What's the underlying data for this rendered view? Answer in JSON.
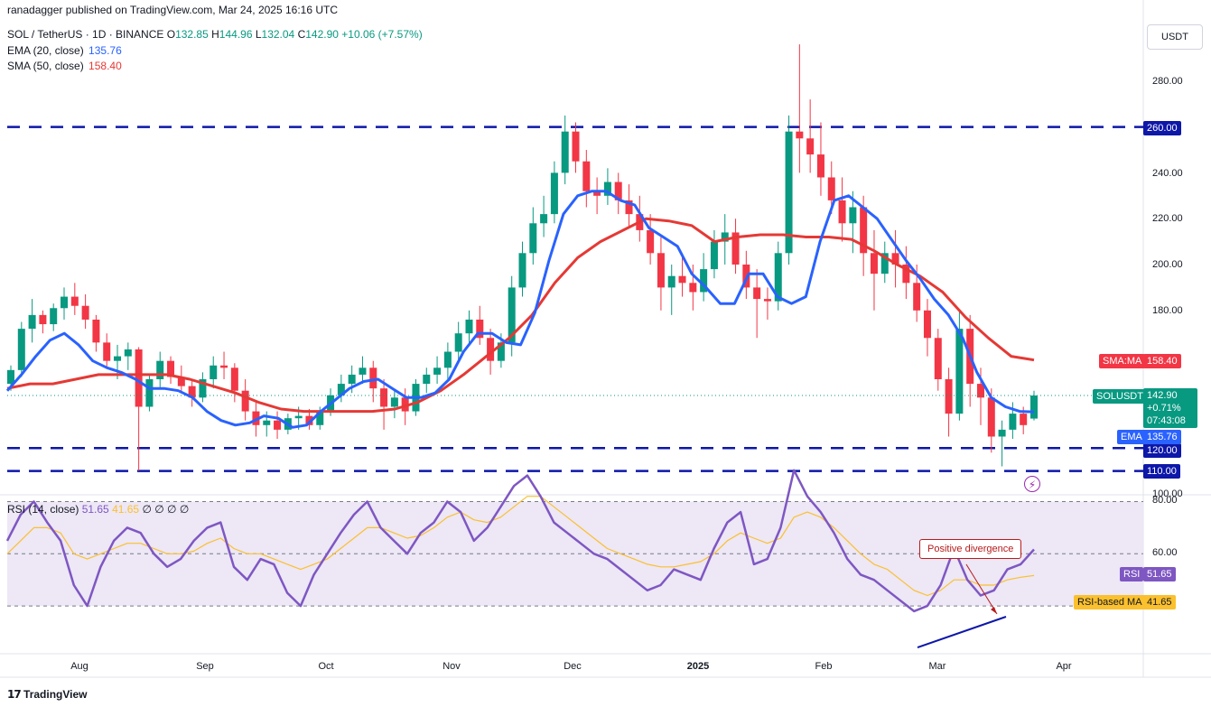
{
  "header": {
    "attribution": "ranadagger published on TradingView.com, Mar 24, 2025 16:16 UTC",
    "symbol": "SOL / TetherUS · 1D · BINANCE",
    "ohlc": {
      "o_label": "O",
      "o": "132.85",
      "h_label": "H",
      "h": "144.96",
      "l_label": "L",
      "l": "132.04",
      "c_label": "C",
      "c": "142.90",
      "change": "+10.06 (+7.57%)"
    },
    "ema_label": "EMA (20, close)",
    "ema_value": "135.76",
    "sma_label": "SMA (50, close)",
    "sma_value": "158.40",
    "currency": "USDT"
  },
  "price_axis": {
    "ticks": [
      "280.00",
      "260.00",
      "240.00",
      "220.00",
      "200.00",
      "180.00",
      "120.00",
      "110.00",
      "100.00"
    ]
  },
  "time_axis": {
    "ticks": [
      "Aug",
      "Sep",
      "Oct",
      "Nov",
      "Dec",
      "2025",
      "Feb",
      "Mar",
      "Apr"
    ]
  },
  "labels": {
    "level_260": "260.00",
    "level_120": "120.00",
    "level_110": "110.00",
    "sma_tag": "SMA:MA",
    "sma_value": "158.40",
    "symbol_tag": "SOLUSDT",
    "last_price": "142.90",
    "last_change": "+0.71%",
    "countdown": "07:43:08",
    "ema_tag": "EMA",
    "ema_value": "135.76"
  },
  "rsi": {
    "header_label": "RSI (14, close)",
    "header_value": "51.65",
    "header_ma": "41.65",
    "header_rest": "∅ ∅ ∅ ∅",
    "ticks": [
      "80.00",
      "60.00"
    ],
    "rsi_tag": "RSI",
    "rsi_value": "51.65",
    "ma_tag": "RSI-based MA",
    "ma_value": "41.65",
    "annotation": "Positive divergence"
  },
  "footer": {
    "brand": "TradingView"
  },
  "colors": {
    "up": "#089981",
    "down": "#f23645",
    "ema": "#2962ff",
    "sma": "#e53935",
    "level": "#0d17a8",
    "rsi": "#7e57c2",
    "rsi_ma": "#fbc02d",
    "rsi_band": "#ede7f6"
  },
  "chart_data": [
    {
      "type": "candlestick",
      "title": "SOL / TetherUS · 1D · BINANCE",
      "x_range": [
        "2025-07-15",
        "2025-04-10"
      ],
      "ylim": [
        100,
        296
      ],
      "currency": "USDT",
      "horizontal_levels": [
        260,
        120,
        110
      ],
      "last": {
        "open": 132.85,
        "high": 144.96,
        "low": 132.04,
        "close": 142.9,
        "change": 10.06,
        "change_pct": 7.57
      },
      "series": [
        {
          "name": "EMA (20, close)",
          "last": 135.76,
          "values": [
            145,
            152,
            160,
            167,
            170,
            165,
            158,
            155,
            153,
            150,
            146,
            146,
            145,
            142,
            136,
            132,
            130,
            131,
            134,
            133,
            129,
            130,
            136,
            141,
            146,
            149,
            150,
            146,
            142,
            142,
            144,
            150,
            162,
            170,
            170,
            166,
            165,
            179,
            202,
            222,
            230,
            232,
            232,
            228,
            226,
            216,
            212,
            208,
            196,
            190,
            183,
            183,
            196,
            196,
            186,
            183,
            186,
            210,
            228,
            230,
            225,
            220,
            211,
            202,
            194,
            185,
            178,
            168,
            153,
            142,
            138,
            136,
            135.76
          ]
        },
        {
          "name": "SMA (50, close)",
          "last": 158.4,
          "values": [
            146,
            148,
            148,
            150,
            152,
            152,
            152,
            152,
            150,
            147,
            144,
            140,
            137,
            136,
            136,
            136,
            136,
            137,
            140,
            145,
            152,
            160,
            168,
            178,
            192,
            203,
            210,
            215,
            220,
            219,
            217,
            210,
            212,
            213,
            213,
            212,
            212,
            211,
            206,
            200,
            195,
            188,
            177,
            168,
            160,
            158.4
          ]
        }
      ],
      "candles_ohlc": [
        [
          148,
          156,
          145,
          154
        ],
        [
          154,
          175,
          151,
          172
        ],
        [
          172,
          185,
          166,
          178
        ],
        [
          178,
          180,
          170,
          174
        ],
        [
          174,
          183,
          171,
          181
        ],
        [
          181,
          190,
          176,
          186
        ],
        [
          186,
          192,
          178,
          182
        ],
        [
          182,
          187,
          172,
          176
        ],
        [
          176,
          178,
          162,
          166
        ],
        [
          166,
          170,
          155,
          158
        ],
        [
          158,
          165,
          150,
          160
        ],
        [
          160,
          166,
          154,
          163
        ],
        [
          163,
          164,
          110,
          138
        ],
        [
          138,
          152,
          136,
          150
        ],
        [
          150,
          162,
          146,
          158
        ],
        [
          158,
          160,
          148,
          151
        ],
        [
          151,
          156,
          144,
          147
        ],
        [
          147,
          150,
          138,
          142
        ],
        [
          142,
          153,
          140,
          150
        ],
        [
          150,
          160,
          146,
          156
        ],
        [
          156,
          162,
          150,
          155
        ],
        [
          155,
          157,
          140,
          145
        ],
        [
          145,
          150,
          132,
          136
        ],
        [
          136,
          140,
          125,
          130
        ],
        [
          130,
          136,
          125,
          132
        ],
        [
          132,
          136,
          124,
          128
        ],
        [
          128,
          135,
          126,
          133
        ],
        [
          133,
          138,
          128,
          134
        ],
        [
          134,
          137,
          128,
          130
        ],
        [
          130,
          138,
          128,
          136
        ],
        [
          136,
          146,
          134,
          143
        ],
        [
          143,
          152,
          140,
          148
        ],
        [
          148,
          156,
          144,
          152
        ],
        [
          152,
          160,
          148,
          155
        ],
        [
          155,
          158,
          140,
          146
        ],
        [
          146,
          150,
          128,
          138
        ],
        [
          138,
          145,
          133,
          142
        ],
        [
          142,
          146,
          130,
          136
        ],
        [
          136,
          150,
          134,
          148
        ],
        [
          148,
          155,
          144,
          152
        ],
        [
          152,
          160,
          148,
          155
        ],
        [
          155,
          166,
          150,
          162
        ],
        [
          162,
          175,
          158,
          170
        ],
        [
          170,
          180,
          165,
          176
        ],
        [
          176,
          182,
          165,
          168
        ],
        [
          168,
          172,
          152,
          158
        ],
        [
          158,
          170,
          155,
          166
        ],
        [
          166,
          195,
          160,
          190
        ],
        [
          190,
          210,
          186,
          205
        ],
        [
          205,
          225,
          200,
          218
        ],
        [
          218,
          230,
          212,
          222
        ],
        [
          222,
          245,
          218,
          240
        ],
        [
          240,
          265,
          235,
          258
        ],
        [
          258,
          262,
          240,
          245
        ],
        [
          245,
          250,
          225,
          232
        ],
        [
          232,
          238,
          222,
          230
        ],
        [
          230,
          242,
          226,
          236
        ],
        [
          236,
          240,
          222,
          228
        ],
        [
          228,
          235,
          216,
          222
        ],
        [
          222,
          230,
          210,
          215
        ],
        [
          215,
          222,
          200,
          205
        ],
        [
          205,
          212,
          180,
          190
        ],
        [
          190,
          200,
          178,
          195
        ],
        [
          195,
          205,
          186,
          192
        ],
        [
          192,
          200,
          180,
          188
        ],
        [
          188,
          205,
          184,
          198
        ],
        [
          198,
          215,
          194,
          210
        ],
        [
          210,
          222,
          200,
          214
        ],
        [
          214,
          220,
          196,
          200
        ],
        [
          200,
          206,
          185,
          190
        ],
        [
          190,
          198,
          168,
          185
        ],
        [
          185,
          190,
          176,
          184
        ],
        [
          184,
          210,
          180,
          205
        ],
        [
          205,
          265,
          200,
          258
        ],
        [
          258,
          296,
          240,
          255
        ],
        [
          255,
          272,
          240,
          248
        ],
        [
          248,
          262,
          230,
          238
        ],
        [
          238,
          245,
          222,
          228
        ],
        [
          228,
          238,
          210,
          218
        ],
        [
          218,
          232,
          205,
          225
        ],
        [
          225,
          230,
          195,
          205
        ],
        [
          205,
          215,
          180,
          196
        ],
        [
          196,
          210,
          192,
          205
        ],
        [
          205,
          215,
          190,
          200
        ],
        [
          200,
          208,
          185,
          192
        ],
        [
          192,
          200,
          175,
          180
        ],
        [
          180,
          185,
          160,
          168
        ],
        [
          168,
          172,
          145,
          150
        ],
        [
          150,
          155,
          125,
          135
        ],
        [
          135,
          180,
          132,
          172
        ],
        [
          172,
          178,
          138,
          148
        ],
        [
          148,
          155,
          130,
          142
        ],
        [
          142,
          146,
          118,
          125
        ],
        [
          125,
          132,
          112,
          128
        ],
        [
          128,
          140,
          124,
          135
        ],
        [
          135,
          138,
          126,
          130
        ],
        [
          132.85,
          144.96,
          132.04,
          142.9
        ]
      ]
    },
    {
      "type": "line",
      "title": "RSI (14, close)",
      "ylim": [
        20,
        80
      ],
      "reference_lines": [
        70,
        50,
        30
      ],
      "annotation": "Positive divergence",
      "series": [
        {
          "name": "RSI",
          "last": 51.65,
          "values": [
            55,
            65,
            70,
            62,
            55,
            38,
            30,
            45,
            55,
            60,
            58,
            50,
            45,
            48,
            55,
            60,
            62,
            45,
            40,
            48,
            46,
            35,
            30,
            42,
            50,
            58,
            65,
            70,
            60,
            55,
            50,
            58,
            62,
            70,
            66,
            55,
            60,
            68,
            76,
            80,
            72,
            62,
            58,
            54,
            50,
            48,
            44,
            40,
            36,
            38,
            44,
            42,
            40,
            52,
            62,
            66,
            46,
            48,
            60,
            82,
            72,
            66,
            58,
            48,
            42,
            40,
            36,
            32,
            28,
            30,
            38,
            52,
            40,
            34,
            36,
            44,
            46,
            51.65
          ]
        },
        {
          "name": "RSI-based MA",
          "last": 41.65,
          "values": [
            50,
            55,
            60,
            60,
            58,
            50,
            48,
            50,
            52,
            54,
            54,
            52,
            50,
            50,
            51,
            54,
            56,
            52,
            50,
            50,
            48,
            46,
            44,
            46,
            48,
            52,
            56,
            60,
            60,
            58,
            56,
            57,
            60,
            64,
            66,
            63,
            62,
            64,
            68,
            72,
            72,
            68,
            64,
            60,
            56,
            52,
            50,
            48,
            46,
            45,
            45,
            46,
            47,
            50,
            55,
            58,
            56,
            54,
            56,
            64,
            66,
            64,
            60,
            55,
            50,
            46,
            44,
            40,
            36,
            34,
            36,
            40,
            40,
            38,
            38,
            40,
            41,
            41.65
          ]
        }
      ]
    }
  ]
}
